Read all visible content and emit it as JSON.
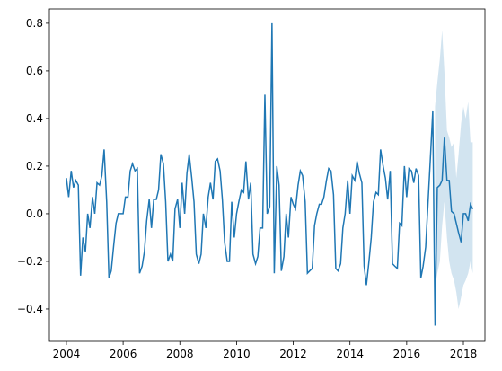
{
  "chart_data": {
    "type": "line",
    "x": [
      2004.0,
      2004.08,
      2004.17,
      2004.25,
      2004.33,
      2004.42,
      2004.5,
      2004.58,
      2004.67,
      2004.75,
      2004.83,
      2004.92,
      2005.0,
      2005.08,
      2005.17,
      2005.25,
      2005.33,
      2005.42,
      2005.5,
      2005.58,
      2005.67,
      2005.75,
      2005.83,
      2005.92,
      2006.0,
      2006.08,
      2006.17,
      2006.25,
      2006.33,
      2006.42,
      2006.5,
      2006.58,
      2006.67,
      2006.75,
      2006.83,
      2006.92,
      2007.0,
      2007.08,
      2007.17,
      2007.25,
      2007.33,
      2007.42,
      2007.5,
      2007.58,
      2007.67,
      2007.75,
      2007.83,
      2007.92,
      2008.0,
      2008.08,
      2008.17,
      2008.25,
      2008.33,
      2008.42,
      2008.5,
      2008.58,
      2008.67,
      2008.75,
      2008.83,
      2008.92,
      2009.0,
      2009.08,
      2009.17,
      2009.25,
      2009.33,
      2009.42,
      2009.5,
      2009.58,
      2009.67,
      2009.75,
      2009.83,
      2009.92,
      2010.0,
      2010.08,
      2010.17,
      2010.25,
      2010.33,
      2010.42,
      2010.5,
      2010.58,
      2010.67,
      2010.75,
      2010.83,
      2010.92,
      2011.0,
      2011.08,
      2011.17,
      2011.25,
      2011.33,
      2011.42,
      2011.5,
      2011.58,
      2011.67,
      2011.75,
      2011.83,
      2011.92,
      2012.0,
      2012.08,
      2012.17,
      2012.25,
      2012.33,
      2012.42,
      2012.5,
      2012.58,
      2012.67,
      2012.75,
      2012.83,
      2012.92,
      2013.0,
      2013.08,
      2013.17,
      2013.25,
      2013.33,
      2013.42,
      2013.5,
      2013.58,
      2013.67,
      2013.75,
      2013.83,
      2013.92,
      2014.0,
      2014.08,
      2014.17,
      2014.25,
      2014.33,
      2014.42,
      2014.5,
      2014.58,
      2014.67,
      2014.75,
      2014.83,
      2014.92,
      2015.0,
      2015.08,
      2015.17,
      2015.25,
      2015.33,
      2015.42,
      2015.5,
      2015.58,
      2015.67,
      2015.75,
      2015.83,
      2015.92,
      2016.0,
      2016.08,
      2016.17,
      2016.25,
      2016.33,
      2016.42,
      2016.5,
      2016.58,
      2016.67,
      2016.75,
      2016.83,
      2016.92,
      2017.0,
      2017.08,
      2017.17,
      2017.25,
      2017.33,
      2017.42,
      2017.5,
      2017.58,
      2017.67,
      2017.75,
      2017.83,
      2017.92,
      2018.0,
      2018.08,
      2018.17,
      2018.25,
      2018.33
    ],
    "values": [
      0.15,
      0.07,
      0.18,
      0.11,
      0.14,
      0.12,
      -0.26,
      -0.1,
      -0.16,
      0.0,
      -0.06,
      0.07,
      0.0,
      0.13,
      0.12,
      0.16,
      0.27,
      0.05,
      -0.27,
      -0.24,
      -0.13,
      -0.04,
      0.0,
      0.0,
      0.0,
      0.07,
      0.07,
      0.18,
      0.21,
      0.18,
      0.19,
      -0.25,
      -0.22,
      -0.16,
      -0.03,
      0.06,
      -0.06,
      0.06,
      0.06,
      0.1,
      0.25,
      0.21,
      0.05,
      -0.2,
      -0.17,
      -0.2,
      0.02,
      0.06,
      -0.06,
      0.13,
      0.0,
      0.17,
      0.25,
      0.15,
      0.05,
      -0.17,
      -0.21,
      -0.17,
      0.0,
      -0.06,
      0.07,
      0.13,
      0.06,
      0.22,
      0.23,
      0.18,
      0.06,
      -0.12,
      -0.2,
      -0.2,
      0.05,
      -0.1,
      0.0,
      0.05,
      0.1,
      0.09,
      0.22,
      0.06,
      0.13,
      -0.17,
      -0.21,
      -0.18,
      -0.06,
      -0.06,
      0.5,
      0.0,
      0.03,
      0.8,
      -0.25,
      0.2,
      0.12,
      -0.24,
      -0.18,
      0.0,
      -0.1,
      0.07,
      0.04,
      0.02,
      0.12,
      0.18,
      0.16,
      0.05,
      -0.25,
      -0.24,
      -0.23,
      -0.05,
      0.0,
      0.04,
      0.04,
      0.07,
      0.14,
      0.19,
      0.18,
      0.08,
      -0.23,
      -0.24,
      -0.21,
      -0.06,
      0.0,
      0.14,
      0.0,
      0.16,
      0.14,
      0.22,
      0.17,
      0.13,
      -0.22,
      -0.3,
      -0.2,
      -0.1,
      0.05,
      0.09,
      0.08,
      0.27,
      0.2,
      0.15,
      0.06,
      0.18,
      -0.21,
      -0.22,
      -0.23,
      -0.04,
      -0.05,
      0.2,
      0.07,
      0.19,
      0.18,
      0.13,
      0.19,
      0.16,
      -0.27,
      -0.22,
      -0.14,
      0.04,
      0.22,
      0.43,
      -0.47,
      0.11,
      0.12,
      0.14,
      0.32,
      0.14,
      0.14,
      0.01,
      0.0,
      -0.04,
      -0.08,
      -0.12,
      0.0,
      0.0,
      -0.03,
      0.04,
      0.02
    ],
    "color": "#1f77b4",
    "band": {
      "x": [
        2017.0,
        2017.08,
        2017.17,
        2017.25,
        2017.33,
        2017.42,
        2017.5,
        2017.58,
        2017.67,
        2017.75,
        2017.83,
        2017.92,
        2018.0,
        2018.08,
        2018.17,
        2018.25,
        2018.33
      ],
      "upper": [
        0.45,
        0.55,
        0.65,
        0.77,
        0.6,
        0.35,
        0.32,
        0.28,
        0.3,
        0.15,
        0.25,
        0.38,
        0.45,
        0.4,
        0.47,
        0.3,
        0.3
      ],
      "lower": [
        -0.3,
        -0.25,
        -0.2,
        -0.05,
        0.05,
        -0.1,
        -0.2,
        -0.25,
        -0.28,
        -0.33,
        -0.4,
        -0.35,
        -0.3,
        -0.28,
        -0.25,
        -0.2,
        -0.25
      ],
      "opacity": 0.2
    },
    "xlim": [
      2003.4,
      2018.76
    ],
    "ylim": [
      -0.536,
      0.86
    ],
    "xticks": [
      2004,
      2006,
      2008,
      2010,
      2012,
      2014,
      2016,
      2018
    ],
    "yticks": [
      {
        "value": -0.4,
        "label": "−0.4"
      },
      {
        "value": -0.2,
        "label": "−0.2"
      },
      {
        "value": 0,
        "label": "0.0"
      },
      0.2,
      0.4,
      0.6,
      0.8
    ]
  }
}
